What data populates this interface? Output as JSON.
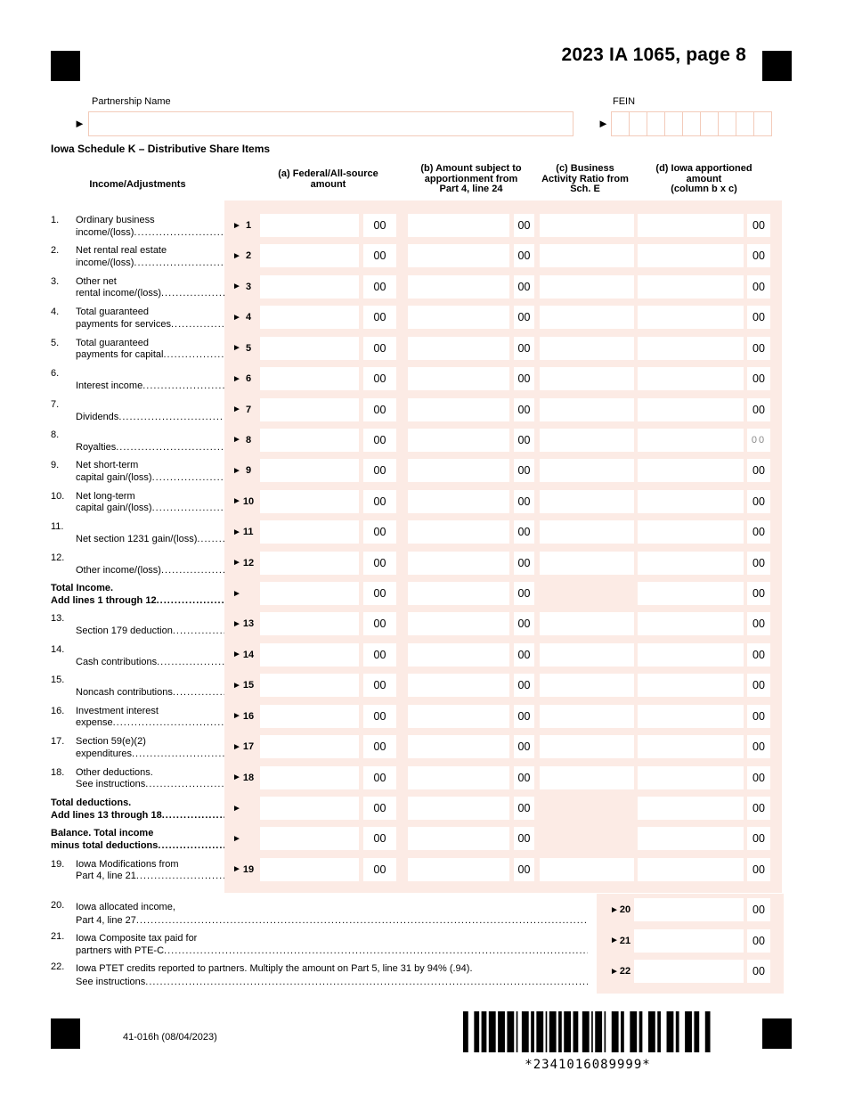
{
  "page": {
    "title": "2023 IA 1065, page 8",
    "form_number": "41-016h (08/04/2023)",
    "barcode_text": "*2341016089999*"
  },
  "identity": {
    "arrow": "►",
    "partnership_label": "Partnership Name",
    "partnership_value": "",
    "fein_label": "FEIN",
    "fein_box_count": 9
  },
  "schedule": {
    "heading": "Iowa Schedule K – Distributive Share Items",
    "cents": "00",
    "columns": {
      "income": "Income/Adjustments",
      "a": [
        "(a) Federal/All-source",
        "amount"
      ],
      "b": [
        "(b) Amount subject to",
        "apportionment from",
        "Part 4, line 24"
      ],
      "c": [
        "(c) Business",
        "Activity Ratio from",
        "Sch. E"
      ],
      "d": [
        "(d) Iowa apportioned",
        "amount",
        "(column b x c)"
      ]
    },
    "rows": [
      {
        "num": "1.",
        "lines": [
          "Ordinary business",
          "income/(loss)"
        ],
        "marker": "1"
      },
      {
        "num": "2.",
        "lines": [
          "Net rental real estate",
          "income/(loss)"
        ],
        "marker": "2"
      },
      {
        "num": "3.",
        "lines": [
          "Other net",
          "rental income/(loss)"
        ],
        "marker": "3"
      },
      {
        "num": "4.",
        "lines": [
          "Total guaranteed",
          "payments for services "
        ],
        "marker": "4"
      },
      {
        "num": "5.",
        "lines": [
          "Total guaranteed",
          "payments for capital "
        ],
        "marker": "5"
      },
      {
        "num": "6.",
        "lines": [
          "Interest income"
        ],
        "marker": "6"
      },
      {
        "num": "7.",
        "lines": [
          "Dividends"
        ],
        "marker": "7"
      },
      {
        "num": "8.",
        "lines": [
          "Royalties"
        ],
        "marker": "8",
        "muted_cents_d": true
      },
      {
        "num": "9.",
        "lines": [
          "Net short-term",
          "capital gain/(loss) "
        ],
        "marker": "9"
      },
      {
        "num": "10.",
        "lines": [
          "Net long-term",
          "capital gain/(loss) "
        ],
        "marker": "10"
      },
      {
        "num": "11.",
        "lines": [
          "Net section 1231 gain/(loss)"
        ],
        "marker": "11"
      },
      {
        "num": "12.",
        "lines": [
          "Other income/(loss)"
        ],
        "marker": "12"
      },
      {
        "num": "",
        "lines": [
          "Total Income.",
          "Add lines 1 through 12"
        ],
        "marker": "",
        "bold": true,
        "no_c": true
      },
      {
        "num": "13.",
        "lines": [
          "Section 179 deduction"
        ],
        "marker": "13"
      },
      {
        "num": "14.",
        "lines": [
          "Cash contributions"
        ],
        "marker": "14"
      },
      {
        "num": "15.",
        "lines": [
          "Noncash contributions"
        ],
        "marker": "15"
      },
      {
        "num": "16.",
        "lines": [
          "Investment interest",
          "expense"
        ],
        "marker": "16"
      },
      {
        "num": "17.",
        "lines": [
          "Section 59(e)(2)",
          "expenditures"
        ],
        "marker": "17"
      },
      {
        "num": "18.",
        "lines": [
          "Other deductions.",
          "See instructions"
        ],
        "marker": "18"
      },
      {
        "num": "",
        "lines": [
          "Total deductions.",
          "Add lines 13 through 18"
        ],
        "marker": "",
        "bold": true,
        "no_c": true
      },
      {
        "num": "",
        "lines": [
          "Balance. Total income",
          "minus total deductions "
        ],
        "marker": "",
        "bold": true,
        "no_c": true
      },
      {
        "num": "19.",
        "lines": [
          "Iowa Modifications from",
          "Part 4, line 21 "
        ],
        "marker": "19"
      }
    ],
    "extra_rows": [
      {
        "num": "20.",
        "lines": [
          "Iowa allocated income,",
          "Part 4, line 27 "
        ],
        "marker": "20"
      },
      {
        "num": "21.",
        "lines": [
          "Iowa Composite tax paid for",
          "partners with PTE-C "
        ],
        "marker": "21"
      },
      {
        "num": "22.",
        "lines": [
          "Iowa PTET credits reported to partners. Multiply the amount on Part 5, line 31 by 94% (.94).",
          "See instructions"
        ],
        "marker": "22"
      }
    ]
  }
}
